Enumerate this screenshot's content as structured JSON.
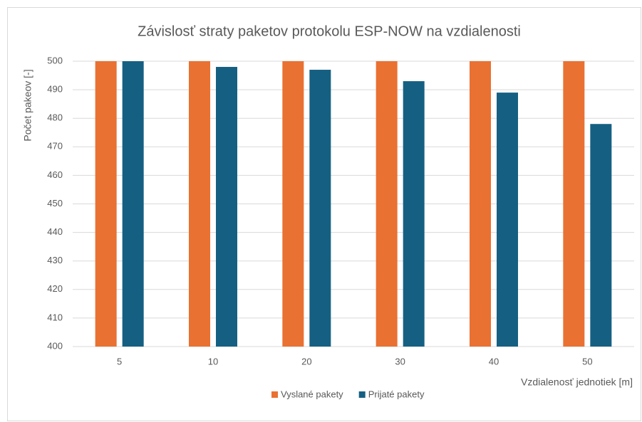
{
  "chart_data": {
    "type": "bar",
    "title": "Závislosť straty paketov protokolu ESP-NOW na vzdialenosti",
    "x_label": "Vzdialenosť jednotiek [m]",
    "y_label": "Počet pakeov [-]",
    "categories": [
      "5",
      "10",
      "20",
      "30",
      "40",
      "50"
    ],
    "series": [
      {
        "name": "Vyslané pakety",
        "color": "#e97132",
        "values": [
          500,
          500,
          500,
          500,
          500,
          500
        ]
      },
      {
        "name": "Prijaté pakety",
        "color": "#156082",
        "values": [
          500,
          498,
          497,
          493,
          489,
          478
        ]
      }
    ],
    "ylim": [
      400,
      500
    ],
    "yticks": [
      400,
      410,
      420,
      430,
      440,
      450,
      460,
      470,
      480,
      490,
      500
    ],
    "grid": true,
    "legend": "bottom"
  }
}
